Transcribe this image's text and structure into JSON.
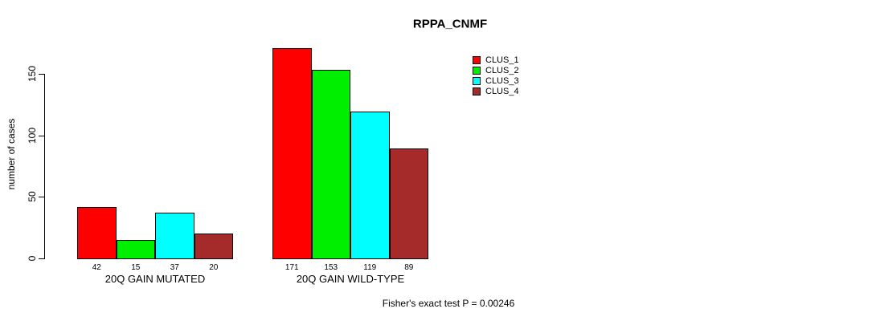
{
  "chart_data": {
    "type": "bar",
    "title": "RPPA_CNMF",
    "xlabel": "",
    "ylabel": "number of cases",
    "categories": [
      "20Q GAIN MUTATED",
      "20Q GAIN WILD-TYPE"
    ],
    "series": [
      {
        "name": "CLUS_1",
        "color": "#FF0000",
        "values": [
          42,
          171
        ]
      },
      {
        "name": "CLUS_2",
        "color": "#00EE00",
        "values": [
          15,
          153
        ]
      },
      {
        "name": "CLUS_3",
        "color": "#00FFFF",
        "values": [
          37,
          119
        ]
      },
      {
        "name": "CLUS_4",
        "color": "#A52A2A",
        "values": [
          20,
          89
        ]
      }
    ],
    "yticks": [
      0,
      50,
      100,
      150
    ],
    "ylim": [
      0,
      175
    ],
    "grid": false,
    "legend_position": "top-right",
    "bar_labels": true,
    "annotation": "Fisher's exact test P = 0.00246"
  }
}
